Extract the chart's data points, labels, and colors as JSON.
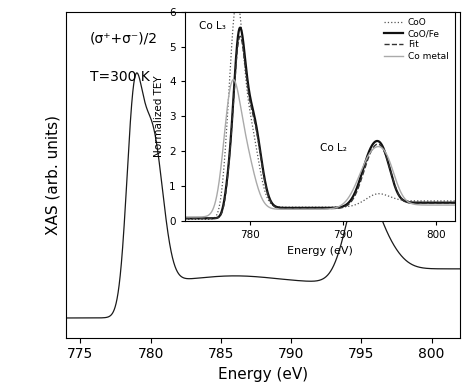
{
  "main_xlim": [
    774,
    802
  ],
  "xlabel": "Energy (eV)",
  "ylabel": "XAS (arb. units)",
  "annotation_text1": "(σ⁺+σ⁻)/2",
  "annotation_text2": "T=300 K",
  "inset_ylabel": "Normalized TEY",
  "inset_xlabel": "Energy (eV)",
  "inset_label_CoL3": "Co L₃",
  "inset_label_CoL2": "Co L₂",
  "legend_labels": [
    "CoO",
    "CoO/Fe",
    "Fit",
    "Co metal"
  ],
  "bg_color": "#ffffff",
  "line_color": "#1a1a1a"
}
